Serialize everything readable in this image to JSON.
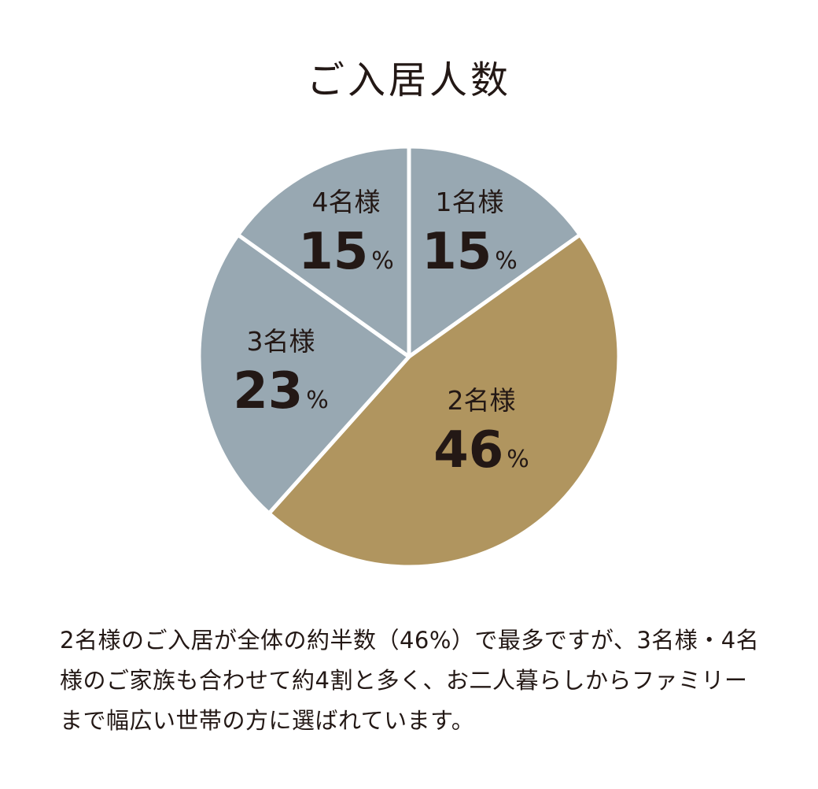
{
  "title": "ご入居人数",
  "chart_data": {
    "type": "pie",
    "categories": [
      "1名様",
      "2名様",
      "3名様",
      "4名様"
    ],
    "values": [
      15,
      46,
      23,
      15
    ],
    "unit": "%",
    "colors": [
      "#98a8b2",
      "#b0955f",
      "#98a8b2",
      "#98a8b2"
    ],
    "start": "12 o'clock",
    "direction": "clockwise"
  },
  "description": "2名様のご入居が全体の約半数（46%）で最多ですが、3名様・4名様のご家族も合わせて約4割と多く、お二人暮らしからファミリーまで幅広い世帯の方に選ばれています。"
}
